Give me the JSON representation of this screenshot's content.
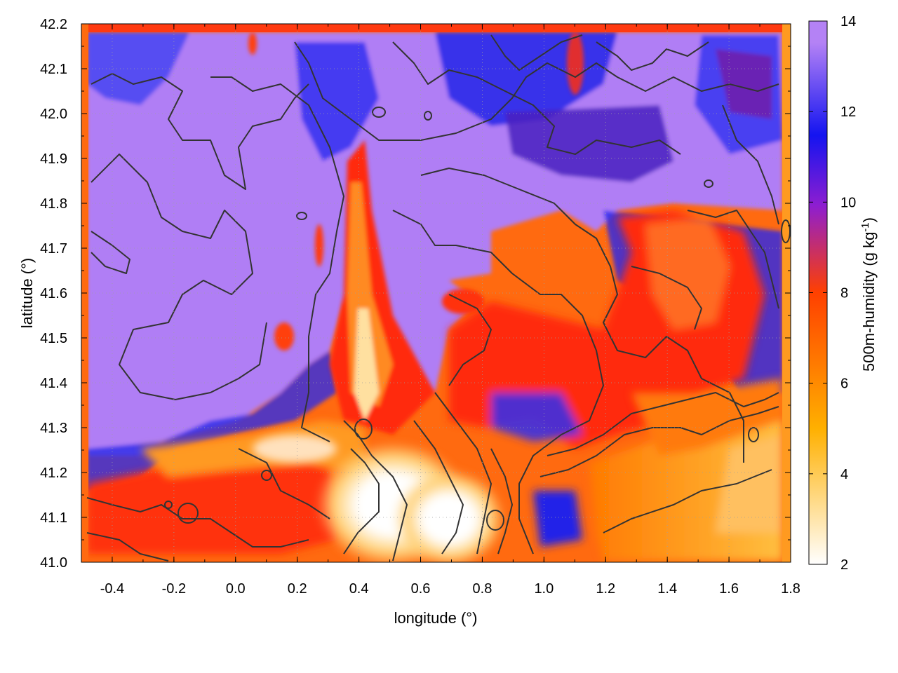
{
  "chart_data": {
    "type": "heatmap",
    "title": "",
    "xlabel": "longitude (°)",
    "ylabel": "latitude (°)",
    "xlim": [
      -0.5,
      1.8
    ],
    "ylim": [
      41.0,
      42.2
    ],
    "xticks": [
      "-0.4",
      "-0.2",
      "0.0",
      "0.2",
      "0.4",
      "0.6",
      "0.8",
      "1.0",
      "1.2",
      "1.4",
      "1.6",
      "1.8"
    ],
    "yticks": [
      "41.0",
      "41.1",
      "41.2",
      "41.3",
      "41.4",
      "41.5",
      "41.6",
      "41.7",
      "41.8",
      "41.9",
      "42.0",
      "42.1",
      "42.2"
    ],
    "grid": true,
    "colorbar": {
      "label_main": "500m-humidity (g kg",
      "label_exp": "-1",
      "label_end": ")",
      "range": [
        2,
        14
      ],
      "ticks": [
        "2",
        "4",
        "6",
        "8",
        "10",
        "12",
        "14"
      ],
      "colors": [
        "#ffffff",
        "#ffb000",
        "#ff4000",
        "#8e1ed0",
        "#1414f0",
        "#b482f5"
      ],
      "color_stops": [
        2,
        5,
        8,
        10,
        11.5,
        13.5
      ]
    },
    "fields": [
      {
        "name": "moist-north",
        "x": 0.2,
        "y": 41.85,
        "value": 13.8
      },
      {
        "name": "dry-valley",
        "x": 0.55,
        "y": 41.12,
        "value": 2.3
      },
      {
        "name": "east-moderate",
        "x": 1.4,
        "y": 41.62,
        "value": 6.5
      },
      {
        "name": "southeast-dry",
        "x": 1.55,
        "y": 41.15,
        "value": 4.5
      },
      {
        "name": "southwest-band",
        "x": 0.1,
        "y": 41.15,
        "value": 7.5
      },
      {
        "name": "northeast-mixed",
        "x": 1.3,
        "y": 42.02,
        "value": 11.0
      }
    ]
  }
}
